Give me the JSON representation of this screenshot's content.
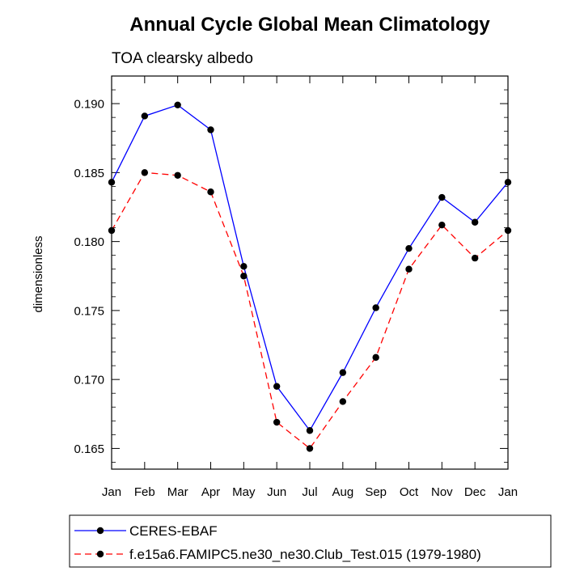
{
  "chart_data": {
    "type": "line",
    "title": "Annual Cycle Global Mean Climatology",
    "subtitle": "TOA clearsky albedo",
    "xlabel": "",
    "ylabel": "dimensionless",
    "categories": [
      "Jan",
      "Feb",
      "Mar",
      "Apr",
      "May",
      "Jun",
      "Jul",
      "Aug",
      "Sep",
      "Oct",
      "Nov",
      "Dec",
      "Jan"
    ],
    "ylim": [
      0.1635,
      0.192
    ],
    "yticks": [
      0.165,
      0.17,
      0.175,
      0.18,
      0.185,
      0.19
    ],
    "ytick_labels": [
      "0.165",
      "0.170",
      "0.175",
      "0.180",
      "0.185",
      "0.190"
    ],
    "grid": false,
    "legend_position": "bottom",
    "series": [
      {
        "name": "CERES-EBAF",
        "color": "#0000ff",
        "dash": "solid",
        "marker": "circle",
        "values": [
          0.1843,
          0.1891,
          0.1899,
          0.1881,
          0.1782,
          0.1695,
          0.1663,
          0.1705,
          0.1752,
          0.1795,
          0.1832,
          0.1814,
          0.1843
        ]
      },
      {
        "name": "f.e15a6.FAMIPC5.ne30_ne30.Club_Test.015 (1979-1980)",
        "color": "#ff0000",
        "dash": "dashed",
        "marker": "circle",
        "values": [
          0.1808,
          0.185,
          0.1848,
          0.1836,
          0.1775,
          0.1669,
          0.165,
          0.1684,
          0.1716,
          0.178,
          0.1812,
          0.1788,
          0.1808
        ]
      }
    ]
  }
}
